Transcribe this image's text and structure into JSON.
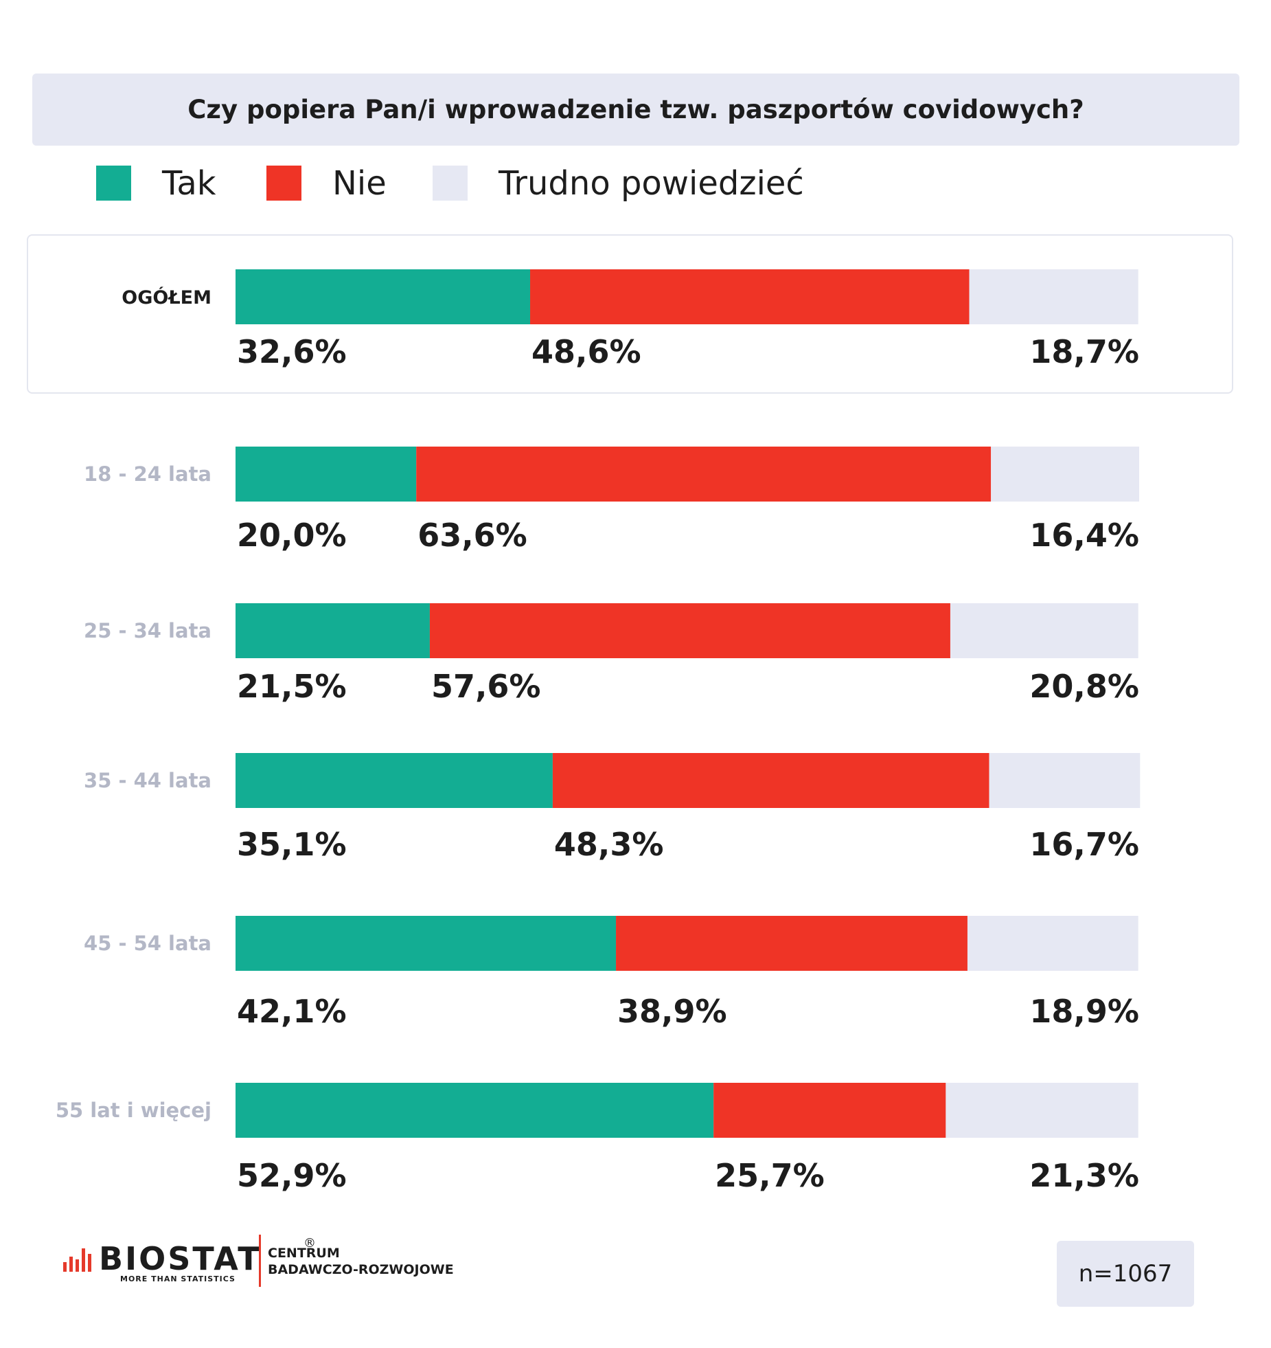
{
  "chart_data": {
    "type": "bar",
    "orientation": "horizontal",
    "stacked": true,
    "title": "Czy popiera Pan/i wprowadzenie tzw. paszportów covidowych?",
    "legend_position": "top-left",
    "categories": [
      "OGÓŁEM",
      "18 - 24 lata",
      "25 - 34 lata",
      "35 - 44 lata",
      "45 - 54 lata",
      "55 lat i więcej"
    ],
    "series": [
      {
        "name": "Tak",
        "color": "#13ad93",
        "values": [
          32.6,
          20.0,
          21.5,
          35.1,
          42.1,
          52.9
        ],
        "labels": [
          "32,6%",
          "20,0%",
          "21,5%",
          "35,1%",
          "42,1%",
          "52,9%"
        ]
      },
      {
        "name": "Nie",
        "color": "#ef3426",
        "values": [
          48.6,
          63.6,
          57.6,
          48.3,
          38.9,
          25.7
        ],
        "labels": [
          "48,6%",
          "63,6%",
          "57,6%",
          "48,3%",
          "38,9%",
          "25,7%"
        ]
      },
      {
        "name": "Trudno powiedzieć",
        "color": "#e6e8f3",
        "values": [
          18.7,
          16.4,
          20.8,
          16.7,
          18.9,
          21.3
        ],
        "labels": [
          "18,7%",
          "16,4%",
          "20,8%",
          "16,7%",
          "18,9%",
          "21,3%"
        ]
      }
    ],
    "xlim": [
      0,
      100
    ],
    "grid": false
  },
  "logo": {
    "name": "BIOSTAT",
    "reg": "®",
    "tagline": "MORE THAN STATISTICS",
    "center_line1": "CENTRUM",
    "center_line2": "BADAWCZO-ROZWOJOWE",
    "bar_color": "#e53a2b"
  },
  "sample": "n=1067"
}
